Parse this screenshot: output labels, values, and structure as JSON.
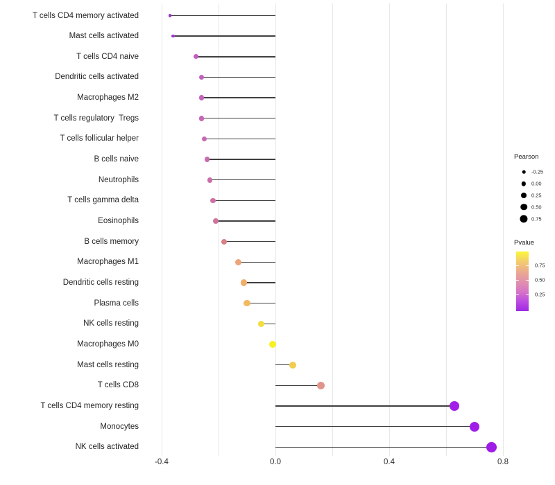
{
  "chart_data": {
    "type": "lollipop",
    "orientation": "horizontal",
    "title": "",
    "xlabel": "",
    "ylabel": "",
    "x_axis": {
      "tick_labels": [
        "-0.4",
        "0.0",
        "0.4",
        "0.8"
      ],
      "tick_values": [
        -0.4,
        0.0,
        0.4,
        0.8
      ],
      "gridline_values": [
        -0.4,
        -0.2,
        0.0,
        0.2,
        0.4,
        0.6,
        0.8
      ],
      "range": [
        -0.46,
        0.86
      ],
      "grid": "vertical-only"
    },
    "points": [
      {
        "label": "T cells CD4 memory activated",
        "pearson": -0.37,
        "color": "#9b35c9",
        "radius": 2.2
      },
      {
        "label": "Mast cells activated",
        "pearson": -0.36,
        "color": "#9b35c9",
        "radius": 2.2
      },
      {
        "label": "T cells CD4 naive",
        "pearson": -0.28,
        "color": "#c25ec2",
        "radius": 3.6
      },
      {
        "label": "Dendritic cells activated",
        "pearson": -0.26,
        "color": "#c360be",
        "radius": 3.6
      },
      {
        "label": "Macrophages M2",
        "pearson": -0.26,
        "color": "#c463bb",
        "radius": 3.7
      },
      {
        "label": "T cells regulatory  Tregs",
        "pearson": -0.26,
        "color": "#c566b7",
        "radius": 3.8
      },
      {
        "label": "T cells follicular helper",
        "pearson": -0.25,
        "color": "#c769b2",
        "radius": 3.8
      },
      {
        "label": "B cells naive",
        "pearson": -0.24,
        "color": "#c96cae",
        "radius": 3.8
      },
      {
        "label": "Neutrophils",
        "pearson": -0.23,
        "color": "#cb6fa8",
        "radius": 3.8
      },
      {
        "label": "T cells gamma delta",
        "pearson": -0.22,
        "color": "#cd72a3",
        "radius": 3.9
      },
      {
        "label": "Eosinophils",
        "pearson": -0.21,
        "color": "#cf759d",
        "radius": 3.9
      },
      {
        "label": "B cells memory",
        "pearson": -0.18,
        "color": "#d88185",
        "radius": 4.2
      },
      {
        "label": "Macrophages M1",
        "pearson": -0.13,
        "color": "#eda47a",
        "radius": 4.5
      },
      {
        "label": "Dendritic cells resting",
        "pearson": -0.11,
        "color": "#f0ae6c",
        "radius": 4.6
      },
      {
        "label": "Plasma cells",
        "pearson": -0.1,
        "color": "#f2b960",
        "radius": 4.6
      },
      {
        "label": "NK cells resting",
        "pearson": -0.05,
        "color": "#f2de3e",
        "radius": 4.9
      },
      {
        "label": "Macrophages M0",
        "pearson": -0.01,
        "color": "#f8f122",
        "radius": 5.0
      },
      {
        "label": "Mast cells resting",
        "pearson": 0.06,
        "color": "#f0cc4f",
        "radius": 5.1
      },
      {
        "label": "T cells CD8",
        "pearson": 0.16,
        "color": "#e0948a",
        "radius": 5.5
      },
      {
        "label": "T cells CD4 memory resting",
        "pearson": 0.63,
        "color": "#a21fe8",
        "radius": 7.0
      },
      {
        "label": "Monocytes",
        "pearson": 0.7,
        "color": "#a01de8",
        "radius": 7.2
      },
      {
        "label": "NK cells activated",
        "pearson": 0.76,
        "color": "#9e1be8",
        "radius": 7.5
      }
    ],
    "size_legend": {
      "title": "Pearson",
      "entries": [
        {
          "label": "-0.25",
          "radius": 2.3
        },
        {
          "label": "0.00",
          "radius": 3.2
        },
        {
          "label": "0.25",
          "radius": 4.0
        },
        {
          "label": "0.50",
          "radius": 4.8
        },
        {
          "label": "0.75",
          "radius": 5.6
        }
      ]
    },
    "color_legend": {
      "title": "Pvalue",
      "ticks": [
        {
          "label": "0.75",
          "pos": 0.23
        },
        {
          "label": "0.50",
          "pos": 0.477
        },
        {
          "label": "0.25",
          "pos": 0.723
        }
      ],
      "gradient_top_to_bottom": [
        "#fbf73a",
        "#f3cd6d",
        "#ebab8e",
        "#e292ab",
        "#d677c4",
        "#bd4ce0",
        "#9f2ae5"
      ]
    },
    "style": {
      "stem_color": "#3f3f3f",
      "gridline_color": "#e7e7e7",
      "axis_text_color": "#303030",
      "background": "#ffffff"
    }
  }
}
